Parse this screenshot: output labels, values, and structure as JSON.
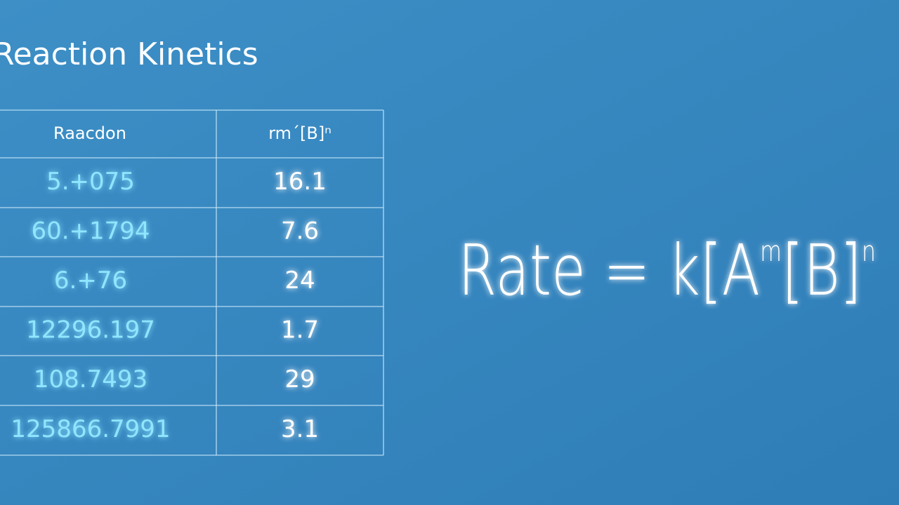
{
  "title": "Reaction Kinetics",
  "table": {
    "header": [
      "Raacdon",
      "rm´[B]ⁿ"
    ],
    "rows": [
      [
        "5.+075",
        "16.1"
      ],
      [
        "60.+1794",
        "7.6"
      ],
      [
        "6.+76",
        "24"
      ],
      [
        "12296.197",
        "1.7"
      ],
      [
        "108.7493",
        "29"
      ],
      [
        "125866.7991",
        "3.1"
      ]
    ]
  },
  "formula": [
    "Rate = k[A",
    "m",
    "[B]",
    "n"
  ]
}
